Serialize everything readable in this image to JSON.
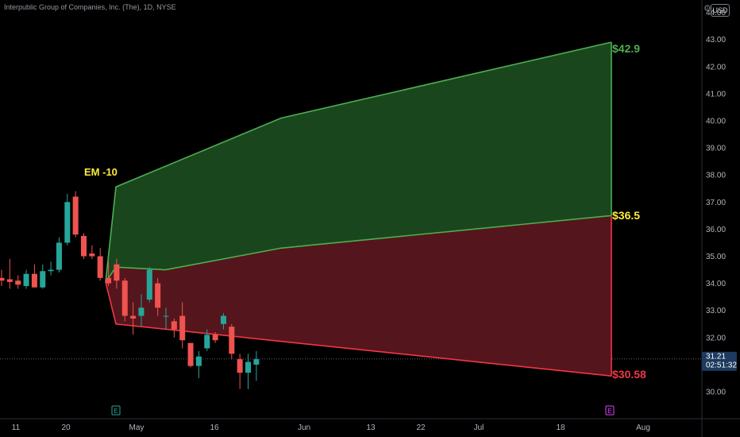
{
  "header": {
    "title": "Interpublic Group of Companies, Inc. (The), 1D, NYSE",
    "currency": "USD"
  },
  "colors": {
    "background": "#000000",
    "up": "#26a69a",
    "down": "#ef5350",
    "upper_fill": "#1b4a20",
    "lower_fill": "#5a161d",
    "upper_line": "#4caf50",
    "lower_line": "#f23645",
    "em_label": "#ffeb3b",
    "top_label": "#4caf50",
    "mid_label": "#ffeb3b",
    "bottom_label": "#f23645",
    "axis_text": "#b2b5be",
    "price_tag_bg": "#1e3a5f"
  },
  "chart_data": {
    "type": "candlestick",
    "title": "Interpublic Group of Companies, Inc. (The), 1D, NYSE",
    "ylim": [
      29.5,
      44.5
    ],
    "y_ticks": [
      30.0,
      31.0,
      32.0,
      33.0,
      34.0,
      35.0,
      36.0,
      37.0,
      38.0,
      39.0,
      40.0,
      41.0,
      42.0,
      43.0,
      44.0
    ],
    "x_ticks": [
      "11",
      "20",
      "May",
      "16",
      "Jun",
      "13",
      "22",
      "Jul",
      "18",
      "Aug"
    ],
    "candles": [
      {
        "x": 0,
        "open": 34.2,
        "high": 34.5,
        "low": 33.9,
        "close": 34.1
      },
      {
        "x": 1,
        "open": 34.15,
        "high": 34.9,
        "low": 33.8,
        "close": 34.05
      },
      {
        "x": 2,
        "open": 34.1,
        "high": 34.3,
        "low": 33.8,
        "close": 33.95
      },
      {
        "x": 3,
        "open": 33.9,
        "high": 34.5,
        "low": 33.8,
        "close": 34.35
      },
      {
        "x": 4,
        "open": 34.35,
        "high": 34.7,
        "low": 33.85,
        "close": 33.85
      },
      {
        "x": 5,
        "open": 33.85,
        "high": 34.7,
        "low": 33.8,
        "close": 34.45
      },
      {
        "x": 6,
        "open": 34.45,
        "high": 34.8,
        "low": 34.3,
        "close": 34.5
      },
      {
        "x": 7,
        "open": 34.5,
        "high": 35.7,
        "low": 34.4,
        "close": 35.5
      },
      {
        "x": 8,
        "open": 35.5,
        "high": 37.3,
        "low": 35.4,
        "close": 37.0
      },
      {
        "x": 9,
        "open": 37.2,
        "high": 37.4,
        "low": 35.7,
        "close": 35.8
      },
      {
        "x": 10,
        "open": 35.75,
        "high": 35.85,
        "low": 34.9,
        "close": 35.0
      },
      {
        "x": 11,
        "open": 35.1,
        "high": 35.4,
        "low": 34.9,
        "close": 35.0
      },
      {
        "x": 12,
        "open": 35.0,
        "high": 35.3,
        "low": 34.1,
        "close": 34.2
      },
      {
        "x": 13,
        "open": 34.2,
        "high": 34.8,
        "low": 33.9,
        "close": 34.0
      },
      {
        "x": 14,
        "open": 34.7,
        "high": 34.9,
        "low": 33.8,
        "close": 34.1
      },
      {
        "x": 15,
        "open": 34.1,
        "high": 34.2,
        "low": 32.6,
        "close": 32.8
      },
      {
        "x": 16,
        "open": 32.8,
        "high": 33.3,
        "low": 32.1,
        "close": 32.7
      },
      {
        "x": 17,
        "open": 32.8,
        "high": 33.6,
        "low": 32.4,
        "close": 33.1
      },
      {
        "x": 18,
        "open": 33.4,
        "high": 34.6,
        "low": 33.3,
        "close": 34.5
      },
      {
        "x": 19,
        "open": 34.0,
        "high": 34.2,
        "low": 32.8,
        "close": 33.1
      },
      {
        "x": 20,
        "open": 32.8,
        "high": 33.1,
        "low": 32.3,
        "close": 32.8
      },
      {
        "x": 21,
        "open": 32.6,
        "high": 32.7,
        "low": 32.0,
        "close": 32.3
      },
      {
        "x": 22,
        "open": 32.8,
        "high": 33.3,
        "low": 31.6,
        "close": 31.9
      },
      {
        "x": 23,
        "open": 31.8,
        "high": 31.8,
        "low": 30.9,
        "close": 30.95
      },
      {
        "x": 24,
        "open": 30.95,
        "high": 31.5,
        "low": 30.5,
        "close": 31.3
      },
      {
        "x": 25,
        "open": 31.6,
        "high": 32.3,
        "low": 31.5,
        "close": 32.1
      },
      {
        "x": 26,
        "open": 32.1,
        "high": 32.2,
        "low": 31.8,
        "close": 31.9
      },
      {
        "x": 27,
        "open": 32.5,
        "high": 32.9,
        "low": 32.3,
        "close": 32.8
      },
      {
        "x": 28,
        "open": 32.4,
        "high": 32.5,
        "low": 31.2,
        "close": 31.4
      },
      {
        "x": 29,
        "open": 31.2,
        "high": 31.4,
        "low": 30.1,
        "close": 30.7
      },
      {
        "x": 30,
        "open": 30.7,
        "high": 31.4,
        "low": 30.1,
        "close": 31.1
      },
      {
        "x": 31,
        "open": 31.0,
        "high": 31.5,
        "low": 30.4,
        "close": 31.2
      }
    ],
    "projection": {
      "label": "EM -10",
      "upper": [
        [
          0,
          37.56
        ],
        [
          10,
          40.1
        ],
        [
          30,
          42.9
        ]
      ],
      "middle": [
        [
          0,
          34.6
        ],
        [
          3,
          34.5
        ],
        [
          10,
          35.3
        ],
        [
          30,
          36.5
        ]
      ],
      "lower": [
        [
          0,
          32.5
        ],
        [
          30,
          30.58
        ]
      ],
      "top_label": "$42.9",
      "mid_label": "$36.5",
      "bottom_label": "$30.58"
    },
    "last_price": "31.21",
    "countdown": "02:51:32",
    "earnings_markers": [
      "E",
      "E"
    ]
  }
}
